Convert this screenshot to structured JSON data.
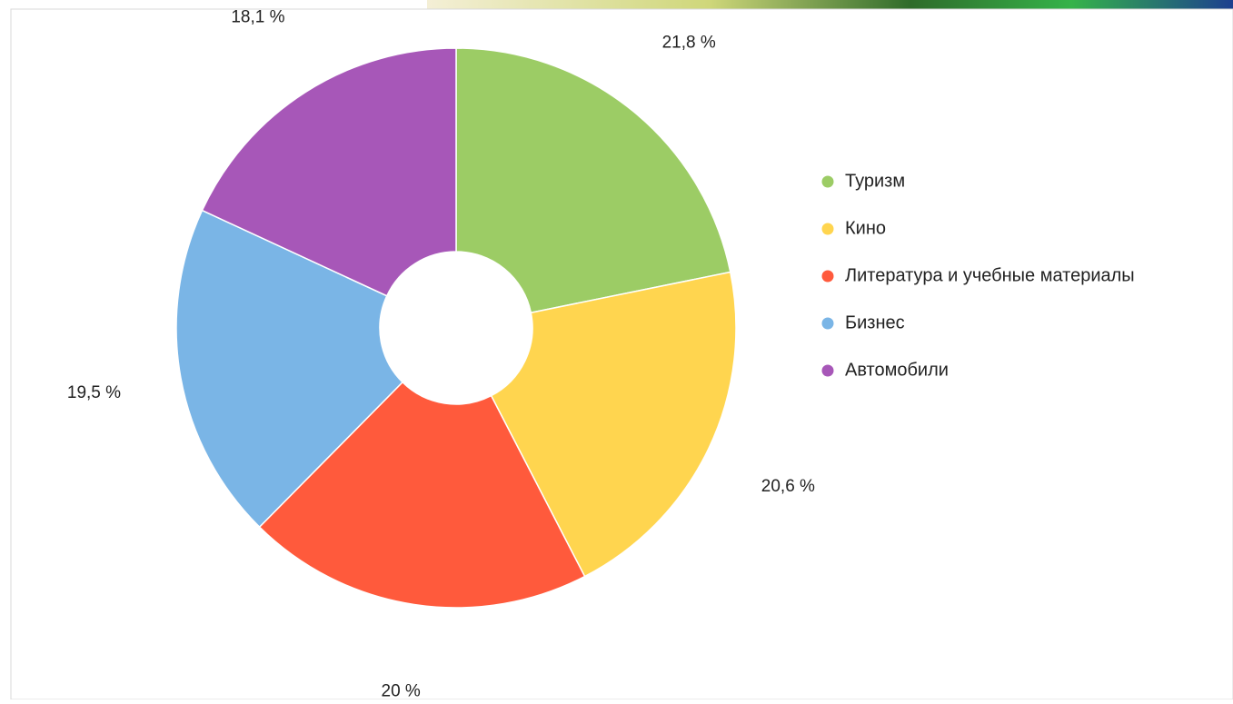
{
  "chart_data": {
    "type": "donut",
    "categories": [
      "Туризм",
      "Кино",
      "Литература и учебные материалы",
      "Бизнес",
      "Автомобили"
    ],
    "values": [
      21.8,
      20.6,
      20,
      19.5,
      18.1
    ],
    "value_labels": [
      "21,8 %",
      "20,6 %",
      "20 %",
      "19,5 %",
      "18,1 %"
    ],
    "colors": [
      "#9ccc65",
      "#ffd54f",
      "#ff5a3c",
      "#7ab5e6",
      "#a757b8"
    ],
    "legend": "right"
  }
}
